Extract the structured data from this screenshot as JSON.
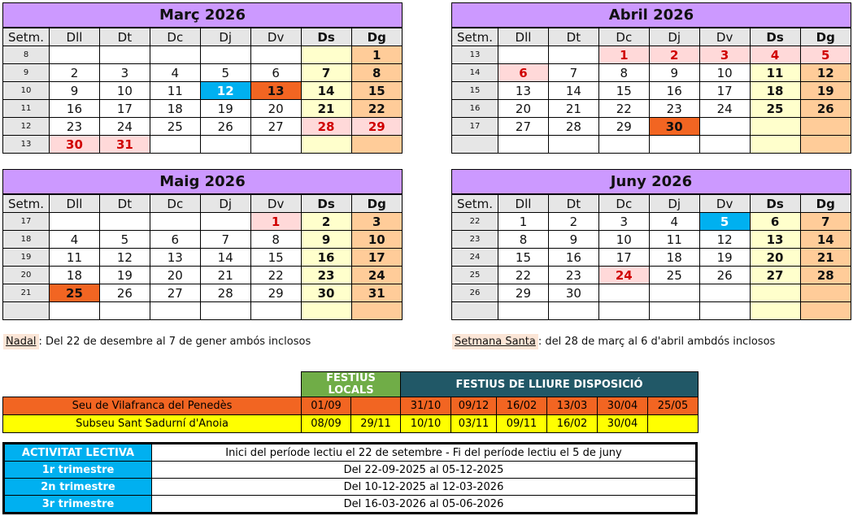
{
  "weekday_header": {
    "week": "Setm.",
    "days": [
      "Dll",
      "Dt",
      "Dc",
      "Dj",
      "Dv",
      "Ds",
      "Dg"
    ]
  },
  "colors": {
    "title": "#cc99ff",
    "saturday": "#ffffcc",
    "sunday": "#ffcc99",
    "holiday": "#ffd9d9",
    "blue_day": "#00b0f0",
    "orange_day": "#f26522"
  },
  "months": [
    {
      "title": "Març 2026",
      "rows": [
        {
          "w": "8",
          "d": [
            "",
            "",
            "",
            "",
            "",
            "",
            "1"
          ]
        },
        {
          "w": "9",
          "d": [
            "2",
            "3",
            "4",
            "5",
            "6",
            "7",
            "8"
          ]
        },
        {
          "w": "10",
          "d": [
            "9",
            "10",
            "11",
            "12",
            "13",
            "14",
            "15"
          ]
        },
        {
          "w": "11",
          "d": [
            "16",
            "17",
            "18",
            "19",
            "20",
            "21",
            "22"
          ]
        },
        {
          "w": "12",
          "d": [
            "23",
            "24",
            "25",
            "26",
            "27",
            "28",
            "29"
          ]
        },
        {
          "w": "13",
          "d": [
            "30",
            "31",
            "",
            "",
            "",
            "",
            ""
          ]
        }
      ],
      "marks": {
        "12": "blue",
        "13": "orange",
        "28": "hol",
        "29": "hol",
        "30": "hol",
        "31": "hol"
      }
    },
    {
      "title": "Abril 2026",
      "rows": [
        {
          "w": "13",
          "d": [
            "",
            "",
            "1",
            "2",
            "3",
            "4",
            "5"
          ]
        },
        {
          "w": "14",
          "d": [
            "6",
            "7",
            "8",
            "9",
            "10",
            "11",
            "12"
          ]
        },
        {
          "w": "15",
          "d": [
            "13",
            "14",
            "15",
            "16",
            "17",
            "18",
            "19"
          ]
        },
        {
          "w": "16",
          "d": [
            "20",
            "21",
            "22",
            "23",
            "24",
            "25",
            "26"
          ]
        },
        {
          "w": "17",
          "d": [
            "27",
            "28",
            "29",
            "30",
            "",
            "",
            ""
          ]
        },
        {
          "w": "",
          "d": [
            "",
            "",
            "",
            "",
            "",
            "",
            ""
          ]
        }
      ],
      "marks": {
        "1": "hol",
        "2": "hol",
        "3": "hol",
        "4": "hol",
        "5": "hol",
        "6": "hol",
        "30": "orange"
      }
    },
    {
      "title": "Maig 2026",
      "rows": [
        {
          "w": "17",
          "d": [
            "",
            "",
            "",
            "",
            "1",
            "2",
            "3"
          ]
        },
        {
          "w": "18",
          "d": [
            "4",
            "5",
            "6",
            "7",
            "8",
            "9",
            "10"
          ]
        },
        {
          "w": "19",
          "d": [
            "11",
            "12",
            "13",
            "14",
            "15",
            "16",
            "17"
          ]
        },
        {
          "w": "20",
          "d": [
            "18",
            "19",
            "20",
            "21",
            "22",
            "23",
            "24"
          ]
        },
        {
          "w": "21",
          "d": [
            "25",
            "26",
            "27",
            "28",
            "29",
            "30",
            "31"
          ]
        },
        {
          "w": "",
          "d": [
            "",
            "",
            "",
            "",
            "",
            "",
            ""
          ]
        }
      ],
      "marks": {
        "1": "hol",
        "25": "orange"
      }
    },
    {
      "title": "Juny 2026",
      "rows": [
        {
          "w": "22",
          "d": [
            "1",
            "2",
            "3",
            "4",
            "5",
            "6",
            "7"
          ]
        },
        {
          "w": "23",
          "d": [
            "8",
            "9",
            "10",
            "11",
            "12",
            "13",
            "14"
          ]
        },
        {
          "w": "24",
          "d": [
            "15",
            "16",
            "17",
            "18",
            "19",
            "20",
            "21"
          ]
        },
        {
          "w": "25",
          "d": [
            "22",
            "23",
            "24",
            "25",
            "26",
            "27",
            "28"
          ]
        },
        {
          "w": "26",
          "d": [
            "29",
            "30",
            "",
            "",
            "",
            "",
            ""
          ]
        },
        {
          "w": "",
          "d": [
            "",
            "",
            "",
            "",
            "",
            "",
            ""
          ]
        }
      ],
      "marks": {
        "5": "blue",
        "24": "hol"
      }
    }
  ],
  "notes": {
    "nadal_label": "Nadal",
    "nadal_text": ": Del 22 de desembre al 7 de gener ambós inclosos",
    "santa_label": "Setmana Santa",
    "santa_text": ": del 28 de març al 6 d'abril ambdós inclosos"
  },
  "festius": {
    "locals_header": "FESTIUS LOCALS",
    "lliure_header": "FESTIUS DE LLIURE DISPOSICIÓ",
    "rows": [
      {
        "name": "Seu de Vilafranca del Penedès",
        "locals": [
          "01/09",
          ""
        ],
        "lliure": [
          "31/10",
          "09/12",
          "16/02",
          "13/03",
          "30/04",
          "25/05"
        ]
      },
      {
        "name": "Subseu Sant Sadurní d'Anoia",
        "locals": [
          "08/09",
          "29/11"
        ],
        "lliure": [
          "10/10",
          "03/11",
          "09/11",
          "16/02",
          "30/04",
          ""
        ]
      }
    ]
  },
  "activitat": [
    {
      "label": "ACTIVITAT LECTIVA",
      "value": "Inici del període lectiu el 22 de setembre - Fi del període lectiu el 5 de juny"
    },
    {
      "label": "1r trimestre",
      "value": "Del 22-09-2025 al 05-12-2025"
    },
    {
      "label": "2n trimestre",
      "value": "Del 10-12-2025 al 12-03-2026"
    },
    {
      "label": "3r trimestre",
      "value": "Del 16-03-2026 al 05-06-2026"
    }
  ]
}
